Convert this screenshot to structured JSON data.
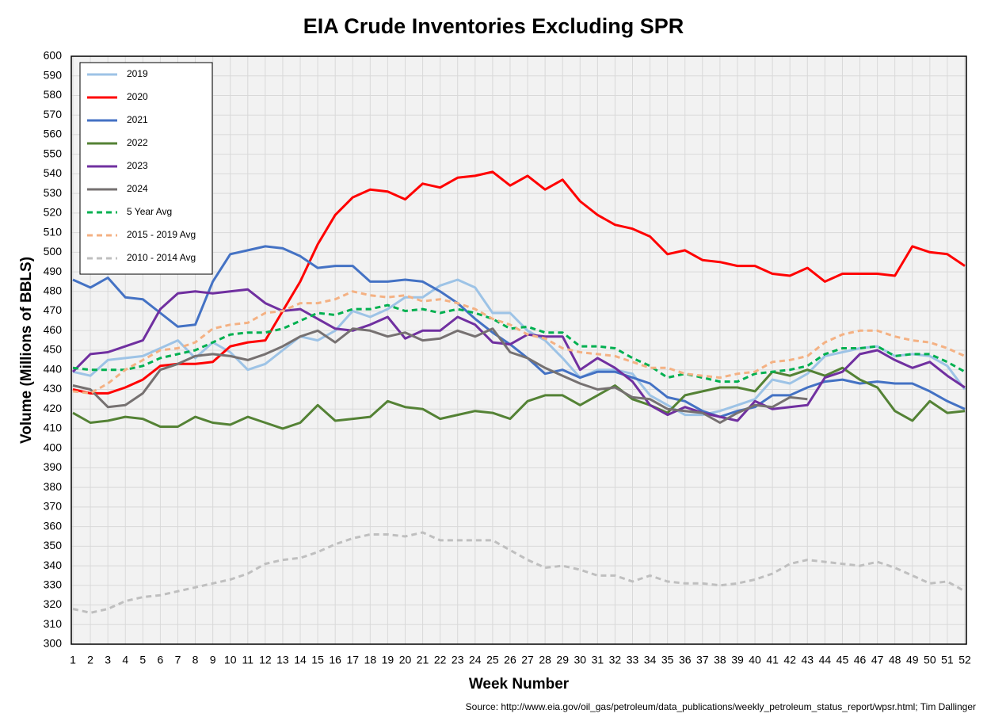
{
  "chart_data": {
    "type": "line",
    "title": "EIA Crude Inventories Excluding SPR",
    "x_label": "Week Number",
    "y_label": "Volume (Millions of BBLS)",
    "source": "Source: http://www.eia.gov/oil_gas/petroleum/data_publications/weekly_petroleum_status_report/wpsr.html; Tim Dallinger",
    "x": [
      1,
      2,
      3,
      4,
      5,
      6,
      7,
      8,
      9,
      10,
      11,
      12,
      13,
      14,
      15,
      16,
      17,
      18,
      19,
      20,
      21,
      22,
      23,
      24,
      25,
      26,
      27,
      28,
      29,
      30,
      31,
      32,
      33,
      34,
      35,
      36,
      37,
      38,
      39,
      40,
      41,
      42,
      43,
      44,
      45,
      46,
      47,
      48,
      49,
      50,
      51,
      52
    ],
    "xlim": [
      1,
      52
    ],
    "ylim": [
      300,
      600
    ],
    "yticks": [
      300,
      310,
      320,
      330,
      340,
      350,
      360,
      370,
      380,
      390,
      400,
      410,
      420,
      430,
      440,
      450,
      460,
      470,
      480,
      490,
      500,
      510,
      520,
      530,
      540,
      550,
      560,
      570,
      580,
      590,
      600
    ],
    "grid": true,
    "legend": "upper left",
    "series": [
      {
        "name": "2019",
        "color": "#9dc3e6",
        "dashed": false,
        "values": [
          439,
          437,
          445,
          446,
          447,
          451,
          455,
          446,
          454,
          449,
          440,
          443,
          450,
          457,
          455,
          460,
          470,
          467,
          471,
          477,
          477,
          483,
          486,
          482,
          469,
          469,
          460,
          455,
          446,
          436,
          440,
          440,
          438,
          427,
          422,
          417,
          417,
          419,
          422,
          425,
          435,
          433,
          438,
          447,
          449,
          451,
          452,
          447,
          448,
          447,
          442,
          430
        ]
      },
      {
        "name": "2020",
        "color": "#ff0000",
        "dashed": false,
        "values": [
          430,
          428,
          428,
          431,
          435,
          442,
          443,
          443,
          444,
          452,
          454,
          455,
          470,
          485,
          504,
          519,
          528,
          532,
          531,
          527,
          535,
          533,
          538,
          539,
          541,
          534,
          539,
          532,
          537,
          526,
          519,
          514,
          512,
          508,
          499,
          501,
          496,
          495,
          493,
          493,
          489,
          488,
          492,
          485,
          489,
          489,
          489,
          488,
          503,
          500,
          499,
          493
        ]
      },
      {
        "name": "2021",
        "color": "#4472c4",
        "dashed": false,
        "values": [
          486,
          482,
          487,
          477,
          476,
          469,
          462,
          463,
          485,
          499,
          501,
          503,
          502,
          498,
          492,
          493,
          493,
          485,
          485,
          486,
          485,
          480,
          474,
          466,
          459,
          453,
          446,
          438,
          440,
          436,
          439,
          439,
          436,
          433,
          426,
          424,
          419,
          416,
          419,
          421,
          427,
          427,
          431,
          434,
          435,
          433,
          434,
          433,
          433,
          429,
          424,
          420
        ]
      },
      {
        "name": "2022",
        "color": "#548235",
        "dashed": false,
        "values": [
          418,
          413,
          414,
          416,
          415,
          411,
          411,
          416,
          413,
          412,
          416,
          413,
          410,
          413,
          422,
          414,
          415,
          416,
          424,
          421,
          420,
          415,
          417,
          419,
          418,
          415,
          424,
          427,
          427,
          422,
          427,
          432,
          425,
          422,
          418,
          427,
          429,
          431,
          431,
          429,
          439,
          437,
          440,
          437,
          441,
          435,
          431,
          419,
          414,
          424,
          418,
          419
        ]
      },
      {
        "name": "2023",
        "color": "#7030a0",
        "dashed": false,
        "values": [
          439,
          448,
          449,
          452,
          455,
          471,
          479,
          480,
          479,
          480,
          481,
          474,
          470,
          471,
          466,
          461,
          460,
          463,
          467,
          456,
          460,
          460,
          467,
          463,
          454,
          453,
          458,
          457,
          457,
          440,
          446,
          441,
          434,
          422,
          417,
          421,
          418,
          416,
          414,
          424,
          420,
          421,
          422,
          436,
          439,
          448,
          450,
          445,
          441,
          444,
          437,
          431
        ]
      },
      {
        "name": "2024",
        "color": "#767171",
        "dashed": false,
        "values": [
          432,
          430,
          421,
          422,
          428,
          440,
          443,
          447,
          448,
          447,
          445,
          448,
          452,
          457,
          460,
          454,
          461,
          460,
          457,
          459,
          455,
          456,
          460,
          457,
          461,
          449,
          446,
          441,
          437,
          433,
          430,
          431,
          426,
          425,
          420,
          419,
          418,
          413,
          418,
          422,
          421,
          426,
          425,
          null,
          null,
          null,
          null,
          null,
          null,
          null,
          null,
          null
        ]
      },
      {
        "name": "5 Year Avg",
        "color": "#00b050",
        "dashed": true,
        "values": [
          441,
          440,
          440,
          440,
          442,
          446,
          448,
          450,
          454,
          458,
          459,
          459,
          461,
          465,
          469,
          468,
          471,
          471,
          473,
          470,
          471,
          469,
          471,
          469,
          466,
          461,
          462,
          459,
          459,
          452,
          452,
          451,
          446,
          442,
          436,
          438,
          436,
          434,
          434,
          438,
          439,
          440,
          442,
          448,
          451,
          451,
          452,
          447,
          448,
          448,
          444,
          439
        ]
      },
      {
        "name": "2015 - 2019 Avg",
        "color": "#f4b183",
        "dashed": true,
        "values": [
          429,
          428,
          433,
          440,
          445,
          450,
          451,
          454,
          461,
          463,
          464,
          469,
          470,
          474,
          474,
          476,
          480,
          478,
          477,
          478,
          475,
          476,
          474,
          471,
          466,
          463,
          458,
          456,
          451,
          449,
          448,
          447,
          444,
          441,
          441,
          438,
          437,
          436,
          438,
          439,
          444,
          445,
          447,
          454,
          458,
          460,
          460,
          457,
          455,
          454,
          451,
          447
        ]
      },
      {
        "name": "2010 - 2014 Avg",
        "color": "#bfbfbf",
        "dashed": true,
        "values": [
          318,
          316,
          318,
          322,
          324,
          325,
          327,
          329,
          331,
          333,
          336,
          341,
          343,
          344,
          347,
          351,
          354,
          356,
          356,
          355,
          357,
          353,
          353,
          353,
          353,
          348,
          343,
          339,
          340,
          338,
          335,
          335,
          332,
          335,
          332,
          331,
          331,
          330,
          331,
          333,
          336,
          341,
          343,
          342,
          341,
          340,
          342,
          339,
          335,
          331,
          332,
          327
        ]
      }
    ]
  }
}
